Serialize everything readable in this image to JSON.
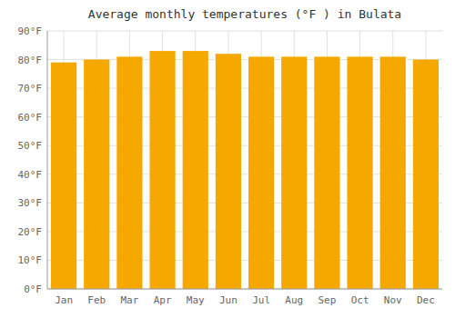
{
  "chart_data": {
    "type": "bar",
    "title": "Average monthly temperatures (°F ) in Bulata",
    "categories": [
      "Jan",
      "Feb",
      "Mar",
      "Apr",
      "May",
      "Jun",
      "Jul",
      "Aug",
      "Sep",
      "Oct",
      "Nov",
      "Dec"
    ],
    "values": [
      79,
      80,
      81,
      83,
      83,
      82,
      81,
      81,
      81,
      81,
      81,
      80
    ],
    "color": "#f5a800",
    "ylim": [
      0,
      90
    ],
    "yticks": [
      {
        "value": 0,
        "label": "0°F"
      },
      {
        "value": 10,
        "label": "10°F"
      },
      {
        "value": 20,
        "label": "20°F"
      },
      {
        "value": 30,
        "label": "30°F"
      },
      {
        "value": 40,
        "label": "40°F"
      },
      {
        "value": 50,
        "label": "50°F"
      },
      {
        "value": 60,
        "label": "60°F"
      },
      {
        "value": 70,
        "label": "70°F"
      },
      {
        "value": 80,
        "label": "80°F"
      },
      {
        "value": 90,
        "label": "90°F"
      }
    ],
    "grid": true
  }
}
